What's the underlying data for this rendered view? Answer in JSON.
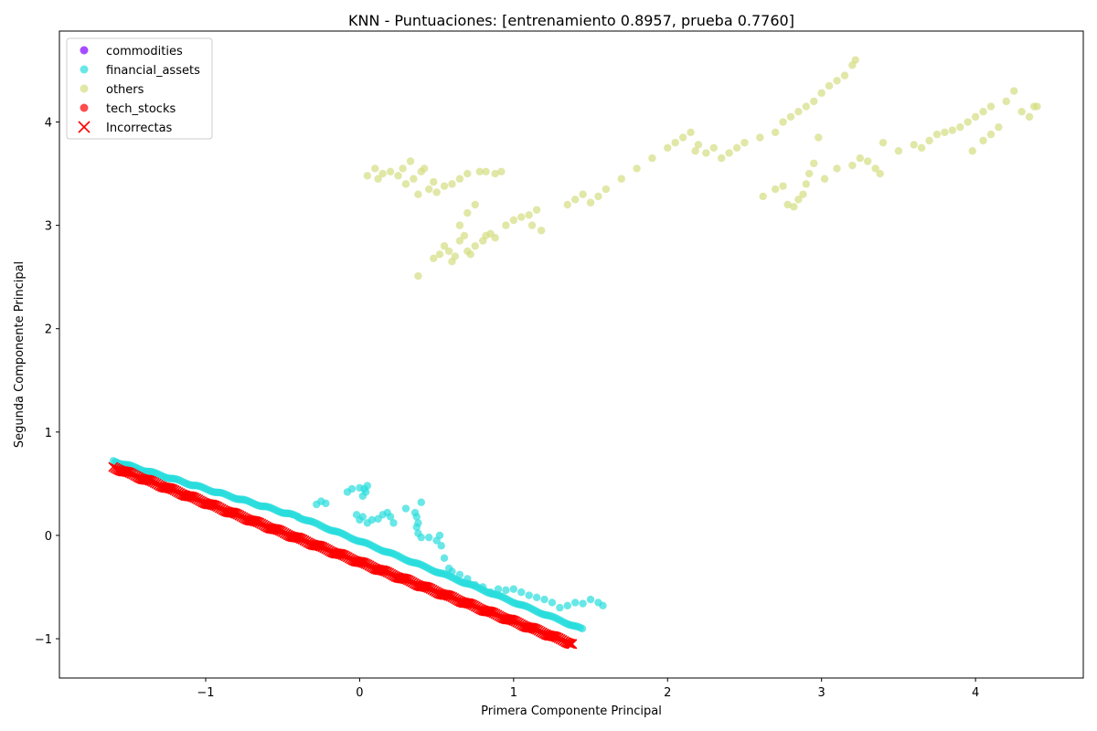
{
  "chart_data": {
    "type": "scatter",
    "title": "KNN - Puntuaciones: [entrenamiento 0.8957, prueba 0.7760]",
    "xlabel": "Primera Componente Principal",
    "ylabel": "Segunda Componente Principal",
    "xlim": [
      -1.95,
      4.7
    ],
    "ylim": [
      -1.38,
      4.88
    ],
    "xticks": [
      -1,
      0,
      1,
      2,
      3,
      4
    ],
    "yticks": [
      -1,
      0,
      1,
      2,
      3,
      4
    ],
    "xtick_labels": [
      "−1",
      "0",
      "1",
      "2",
      "3",
      "4"
    ],
    "ytick_labels": [
      "−1",
      "0",
      "1",
      "2",
      "3",
      "4"
    ],
    "grid": false,
    "legend_position": "top-left",
    "legend": [
      {
        "label": "commodities",
        "color": "#8000ff",
        "marker": "circle"
      },
      {
        "label": "financial_assets",
        "color": "#2adddd",
        "marker": "circle"
      },
      {
        "label": "others",
        "color": "#d4dd80",
        "marker": "circle"
      },
      {
        "label": "tech_stocks",
        "color": "#ff0000",
        "marker": "circle"
      },
      {
        "label": "Incorrectas",
        "color": "#ff0000",
        "marker": "x"
      }
    ],
    "series": [
      {
        "name": "others",
        "color": "#d4dd80",
        "points": [
          [
            0.05,
            3.48
          ],
          [
            0.1,
            3.55
          ],
          [
            0.12,
            3.45
          ],
          [
            0.15,
            3.5
          ],
          [
            0.2,
            3.52
          ],
          [
            0.25,
            3.48
          ],
          [
            0.28,
            3.55
          ],
          [
            0.3,
            3.4
          ],
          [
            0.33,
            3.62
          ],
          [
            0.35,
            3.45
          ],
          [
            0.38,
            3.3
          ],
          [
            0.4,
            3.52
          ],
          [
            0.42,
            3.55
          ],
          [
            0.45,
            3.35
          ],
          [
            0.48,
            3.42
          ],
          [
            0.5,
            3.32
          ],
          [
            0.55,
            3.38
          ],
          [
            0.6,
            3.4
          ],
          [
            0.65,
            3.45
          ],
          [
            0.7,
            3.5
          ],
          [
            0.75,
            3.2
          ],
          [
            0.78,
            3.52
          ],
          [
            0.82,
            3.52
          ],
          [
            0.88,
            3.5
          ],
          [
            0.92,
            3.52
          ],
          [
            0.38,
            2.51
          ],
          [
            0.48,
            2.68
          ],
          [
            0.52,
            2.72
          ],
          [
            0.55,
            2.8
          ],
          [
            0.58,
            2.75
          ],
          [
            0.6,
            2.65
          ],
          [
            0.62,
            2.7
          ],
          [
            0.65,
            2.85
          ],
          [
            0.68,
            2.9
          ],
          [
            0.7,
            2.75
          ],
          [
            0.72,
            2.72
          ],
          [
            0.75,
            2.8
          ],
          [
            0.8,
            2.85
          ],
          [
            0.82,
            2.9
          ],
          [
            0.85,
            2.92
          ],
          [
            0.88,
            2.88
          ],
          [
            0.95,
            3.0
          ],
          [
            1.0,
            3.05
          ],
          [
            1.05,
            3.08
          ],
          [
            1.1,
            3.1
          ],
          [
            1.12,
            3.0
          ],
          [
            1.15,
            3.15
          ],
          [
            1.18,
            2.95
          ],
          [
            0.65,
            3.0
          ],
          [
            0.7,
            3.12
          ],
          [
            1.35,
            3.2
          ],
          [
            1.4,
            3.25
          ],
          [
            1.45,
            3.3
          ],
          [
            1.5,
            3.22
          ],
          [
            1.55,
            3.28
          ],
          [
            1.6,
            3.35
          ],
          [
            1.7,
            3.45
          ],
          [
            1.8,
            3.55
          ],
          [
            1.9,
            3.65
          ],
          [
            2.0,
            3.75
          ],
          [
            2.05,
            3.8
          ],
          [
            2.1,
            3.85
          ],
          [
            2.15,
            3.9
          ],
          [
            2.18,
            3.72
          ],
          [
            2.2,
            3.78
          ],
          [
            2.25,
            3.7
          ],
          [
            2.3,
            3.75
          ],
          [
            2.35,
            3.65
          ],
          [
            2.4,
            3.7
          ],
          [
            2.45,
            3.75
          ],
          [
            2.5,
            3.8
          ],
          [
            2.6,
            3.85
          ],
          [
            2.7,
            3.9
          ],
          [
            2.75,
            4.0
          ],
          [
            2.8,
            4.05
          ],
          [
            2.85,
            4.1
          ],
          [
            2.9,
            4.15
          ],
          [
            2.95,
            4.2
          ],
          [
            3.0,
            4.28
          ],
          [
            3.05,
            4.35
          ],
          [
            3.1,
            4.4
          ],
          [
            3.15,
            4.45
          ],
          [
            3.2,
            4.55
          ],
          [
            3.22,
            4.6
          ],
          [
            2.62,
            3.28
          ],
          [
            2.7,
            3.35
          ],
          [
            2.75,
            3.38
          ],
          [
            2.78,
            3.2
          ],
          [
            2.82,
            3.18
          ],
          [
            2.85,
            3.25
          ],
          [
            2.88,
            3.3
          ],
          [
            2.9,
            3.4
          ],
          [
            2.92,
            3.5
          ],
          [
            2.95,
            3.6
          ],
          [
            2.98,
            3.85
          ],
          [
            3.02,
            3.45
          ],
          [
            3.1,
            3.55
          ],
          [
            3.2,
            3.58
          ],
          [
            3.25,
            3.65
          ],
          [
            3.3,
            3.62
          ],
          [
            3.35,
            3.55
          ],
          [
            3.38,
            3.5
          ],
          [
            3.4,
            3.8
          ],
          [
            3.5,
            3.72
          ],
          [
            3.6,
            3.78
          ],
          [
            3.65,
            3.75
          ],
          [
            3.7,
            3.82
          ],
          [
            3.75,
            3.88
          ],
          [
            3.8,
            3.9
          ],
          [
            3.85,
            3.92
          ],
          [
            3.9,
            3.95
          ],
          [
            3.95,
            4.0
          ],
          [
            4.0,
            4.05
          ],
          [
            4.05,
            4.1
          ],
          [
            4.1,
            4.15
          ],
          [
            4.15,
            3.95
          ],
          [
            4.05,
            3.82
          ],
          [
            3.98,
            3.72
          ],
          [
            4.2,
            4.2
          ],
          [
            4.25,
            4.3
          ],
          [
            4.3,
            4.1
          ],
          [
            4.35,
            4.05
          ],
          [
            4.38,
            4.15
          ],
          [
            4.4,
            4.15
          ],
          [
            4.1,
            3.88
          ]
        ]
      },
      {
        "name": "financial_assets",
        "color": "#2adddd",
        "line_segments": [
          {
            "x0": -1.6,
            "y0": 0.72,
            "x1": -0.4,
            "y1": 0.18,
            "n": 120
          },
          {
            "x0": -0.4,
            "y0": 0.18,
            "x1": 1.45,
            "y1": -0.91,
            "n": 160
          }
        ],
        "points": [
          [
            -0.28,
            0.3
          ],
          [
            -0.25,
            0.33
          ],
          [
            -0.22,
            0.31
          ],
          [
            -0.08,
            0.42
          ],
          [
            -0.05,
            0.45
          ],
          [
            0.0,
            0.46
          ],
          [
            0.03,
            0.45
          ],
          [
            0.05,
            0.48
          ],
          [
            0.02,
            0.38
          ],
          [
            0.04,
            0.42
          ],
          [
            -0.02,
            0.2
          ],
          [
            0.0,
            0.15
          ],
          [
            0.02,
            0.18
          ],
          [
            0.05,
            0.12
          ],
          [
            0.08,
            0.15
          ],
          [
            0.12,
            0.16
          ],
          [
            0.15,
            0.2
          ],
          [
            0.18,
            0.22
          ],
          [
            0.2,
            0.18
          ],
          [
            0.22,
            0.12
          ],
          [
            0.3,
            0.26
          ],
          [
            0.36,
            0.22
          ],
          [
            0.37,
            0.18
          ],
          [
            0.38,
            0.12
          ],
          [
            0.37,
            0.08
          ],
          [
            0.38,
            0.02
          ],
          [
            0.4,
            -0.02
          ],
          [
            0.4,
            0.32
          ],
          [
            0.45,
            -0.02
          ],
          [
            0.5,
            -0.05
          ],
          [
            0.52,
            0.0
          ],
          [
            0.53,
            -0.1
          ],
          [
            0.55,
            -0.22
          ],
          [
            0.58,
            -0.32
          ],
          [
            0.6,
            -0.35
          ],
          [
            0.65,
            -0.38
          ],
          [
            0.7,
            -0.42
          ],
          [
            0.75,
            -0.48
          ],
          [
            0.8,
            -0.5
          ],
          [
            0.85,
            -0.55
          ],
          [
            0.9,
            -0.52
          ],
          [
            0.95,
            -0.53
          ],
          [
            1.0,
            -0.52
          ],
          [
            1.05,
            -0.55
          ],
          [
            1.1,
            -0.58
          ],
          [
            1.15,
            -0.6
          ],
          [
            1.2,
            -0.62
          ],
          [
            1.25,
            -0.65
          ],
          [
            1.3,
            -0.7
          ],
          [
            1.35,
            -0.68
          ],
          [
            1.4,
            -0.65
          ],
          [
            1.45,
            -0.66
          ],
          [
            1.5,
            -0.62
          ],
          [
            1.55,
            -0.65
          ],
          [
            1.58,
            -0.68
          ]
        ]
      },
      {
        "name": "Incorrectas",
        "color": "#ff0000",
        "marker": "x",
        "line_segments": [
          {
            "x0": -1.6,
            "y0": 0.66,
            "x1": 1.38,
            "y1": -1.05,
            "n": 320
          }
        ]
      }
    ]
  }
}
